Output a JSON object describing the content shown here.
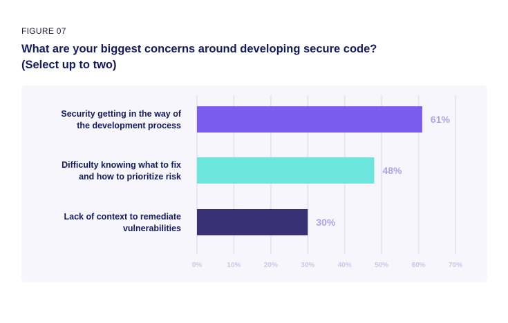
{
  "figure_label": "FIGURE 07",
  "title_line1": "What are your biggest concerns around developing secure code?",
  "title_line2": "(Select up to two)",
  "chart_data": {
    "type": "bar",
    "orientation": "horizontal",
    "categories": [
      [
        "Security getting in the way of",
        "the development process"
      ],
      [
        "Difficulty knowing what to fix",
        "and how to prioritize risk"
      ],
      [
        "Lack of context to remediate",
        "vulnerabilities"
      ]
    ],
    "values": [
      61,
      48,
      30
    ],
    "value_labels": [
      "61%",
      "48%",
      "30%"
    ],
    "colors": [
      "#7b5cf0",
      "#6ce6dc",
      "#3a3075"
    ],
    "xlim": [
      0,
      70
    ],
    "xticks": [
      0,
      10,
      20,
      30,
      40,
      50,
      60,
      70
    ],
    "xtick_labels": [
      "0%",
      "10%",
      "20%",
      "30%",
      "40%",
      "50%",
      "60%",
      "70%"
    ],
    "grid": true,
    "tick_color": "#c9c7f0",
    "value_label_color": "#a9a6e6",
    "category_label_color": "#131a5e"
  }
}
